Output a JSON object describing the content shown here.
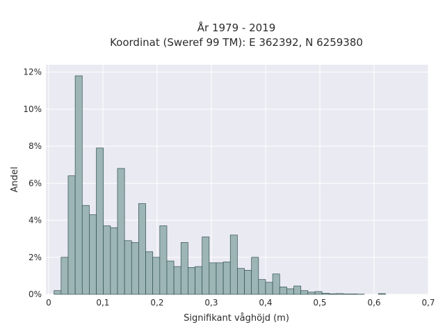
{
  "chart_data": {
    "type": "bar",
    "title_line1": "År 1979 - 2019",
    "title_line2": "Koordinat (Sweref 99 TM): E 362392, N 6259380",
    "xlabel": "Signifikant våghöjd (m)",
    "ylabel": "Andel",
    "xlim": [
      -0.005,
      0.7
    ],
    "ylim": [
      0,
      12.4
    ],
    "x_ticks": [
      0,
      0.1,
      0.2,
      0.3,
      0.4,
      0.5,
      0.6,
      0.7
    ],
    "x_tick_labels": [
      "0",
      "0,1",
      "0,2",
      "0,3",
      "0,4",
      "0,5",
      "0,6",
      "0,7"
    ],
    "y_ticks": [
      0,
      2,
      4,
      6,
      8,
      10,
      12
    ],
    "y_tick_labels": [
      "0%",
      "2%",
      "4%",
      "6%",
      "8%",
      "10%",
      "12%"
    ],
    "bin_width": 0.013,
    "bin_starts": [
      0.01,
      0.023,
      0.036,
      0.049,
      0.062,
      0.075,
      0.088,
      0.101,
      0.114,
      0.127,
      0.14,
      0.153,
      0.166,
      0.179,
      0.192,
      0.205,
      0.218,
      0.231,
      0.244,
      0.257,
      0.27,
      0.283,
      0.296,
      0.309,
      0.322,
      0.335,
      0.348,
      0.361,
      0.374,
      0.387,
      0.4,
      0.413,
      0.426,
      0.439,
      0.452,
      0.465,
      0.478,
      0.491,
      0.504,
      0.517,
      0.53,
      0.543,
      0.556,
      0.569,
      0.582,
      0.595,
      0.608
    ],
    "values": [
      0.2,
      2.0,
      6.4,
      11.8,
      4.8,
      4.3,
      7.9,
      3.7,
      3.6,
      6.8,
      2.9,
      2.8,
      4.9,
      2.3,
      2.0,
      3.7,
      1.8,
      1.5,
      2.8,
      1.45,
      1.5,
      3.1,
      1.7,
      1.7,
      1.75,
      3.2,
      1.4,
      1.3,
      2.0,
      0.8,
      0.65,
      1.1,
      0.4,
      0.3,
      0.45,
      0.2,
      0.12,
      0.15,
      0.06,
      0.03,
      0.04,
      0.02,
      0.02,
      0.01,
      0.0,
      0.0,
      0.04
    ],
    "bar_fill": "#9db5b5",
    "bar_edge": "#2f4f4f",
    "plot_bg": "#eaeaf2",
    "grid": true,
    "grid_color": "#ffffff"
  }
}
